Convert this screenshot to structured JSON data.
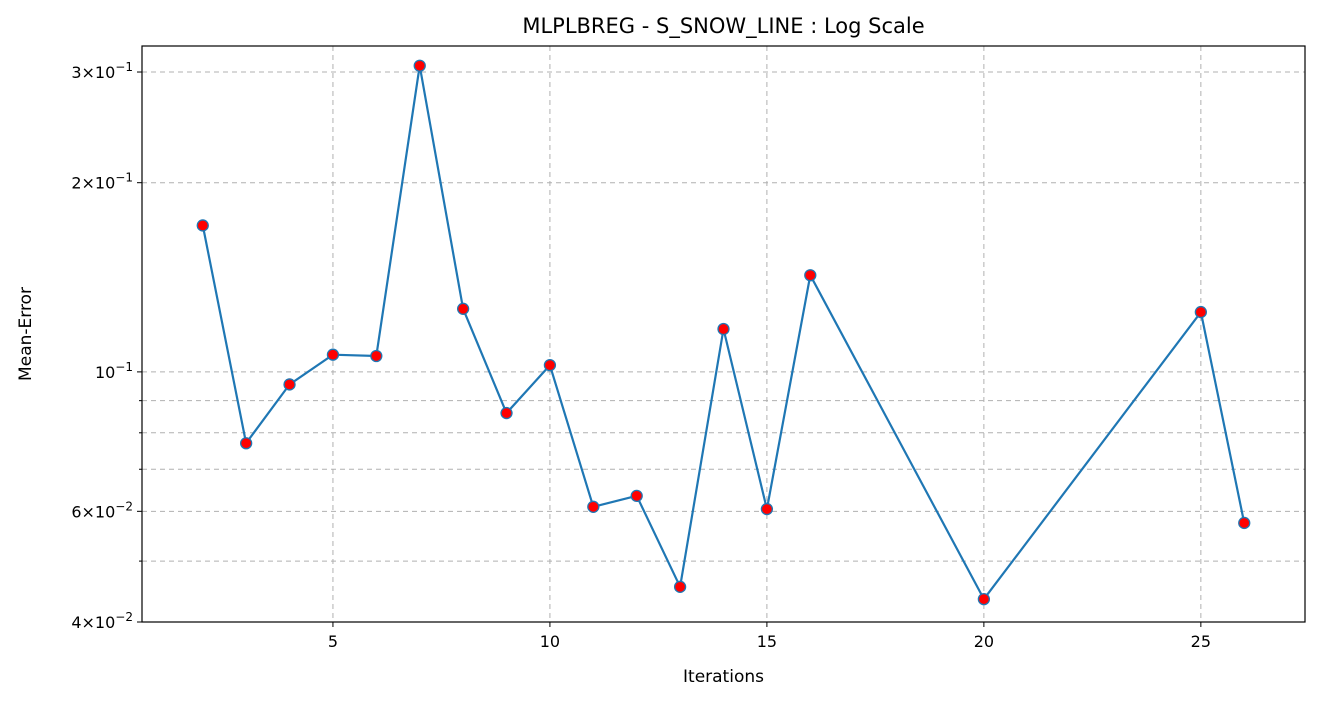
{
  "chart_data": {
    "type": "line",
    "title": "MLPLBREG - S_SNOW_LINE : Log Scale",
    "xlabel": "Iterations",
    "ylabel": "Mean-Error",
    "yscale": "log",
    "xlim": [
      0.6,
      27.4
    ],
    "ylim": [
      0.04,
      0.33
    ],
    "grid": true,
    "x_ticks": [
      5,
      10,
      15,
      20,
      25
    ],
    "x_tick_labels": [
      "5",
      "10",
      "15",
      "20",
      "25"
    ],
    "y_major_ticks": [
      {
        "value": 0.04,
        "mantissa": "4",
        "exponent": "−2"
      },
      {
        "value": 0.06,
        "mantissa": "6",
        "exponent": "−2"
      },
      {
        "value": 0.1,
        "mantissa": "",
        "exponent": "−1"
      },
      {
        "value": 0.2,
        "mantissa": "2",
        "exponent": "−1"
      },
      {
        "value": 0.3,
        "mantissa": "3",
        "exponent": "−1"
      }
    ],
    "y_minor_grid": [
      0.05,
      0.07,
      0.08,
      0.09
    ],
    "series": [
      {
        "line_color": "#1f77b4",
        "marker_color": "#ff0000",
        "x": [
          2,
          3,
          4,
          5,
          6,
          7,
          8,
          9,
          10,
          11,
          12,
          13,
          14,
          15,
          16,
          20,
          25,
          26
        ],
        "y": [
          0.171,
          0.077,
          0.0955,
          0.1065,
          0.106,
          0.307,
          0.126,
          0.086,
          0.1025,
          0.061,
          0.0635,
          0.0455,
          0.117,
          0.0605,
          0.1425,
          0.0435,
          0.1245,
          0.0575
        ]
      }
    ]
  }
}
